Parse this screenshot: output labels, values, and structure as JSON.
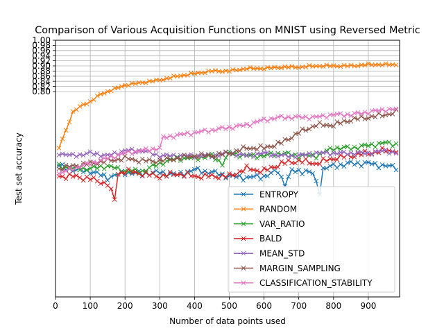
{
  "chart_data": {
    "type": "line",
    "title": "Comparison of Various Acquisition Functions on MNIST using Reversed Metric",
    "xlabel": "Number of data points used",
    "ylabel": "Test set accuracy",
    "xlim": [
      0,
      990
    ],
    "ylim": [
      0.0,
      1.0
    ],
    "x_ticks": [
      0,
      100,
      200,
      300,
      400,
      500,
      600,
      700,
      800,
      900
    ],
    "y_ticks": [
      0.8,
      0.82,
      0.84,
      0.86,
      0.88,
      0.9,
      0.92,
      0.94,
      0.96,
      0.98,
      1.0
    ],
    "y_tick_labels": [
      "0.80",
      "0.82",
      "0.84",
      "0.86",
      "0.88",
      "0.90",
      "0.92",
      "0.94",
      "0.96",
      "0.98",
      "1.00"
    ],
    "grid": true,
    "legend_position": "lower-right",
    "marker": "x",
    "series": [
      {
        "name": "ENTROPY",
        "color": "#1f77b4",
        "anchors": [
          [
            10,
            0.51
          ],
          [
            50,
            0.495
          ],
          [
            100,
            0.49
          ],
          [
            150,
            0.465
          ],
          [
            200,
            0.485
          ],
          [
            250,
            0.48
          ],
          [
            300,
            0.485
          ],
          [
            350,
            0.475
          ],
          [
            400,
            0.495
          ],
          [
            450,
            0.485
          ],
          [
            500,
            0.47
          ],
          [
            550,
            0.465
          ],
          [
            600,
            0.47
          ],
          [
            640,
            0.49
          ],
          [
            660,
            0.44
          ],
          [
            680,
            0.49
          ],
          [
            720,
            0.49
          ],
          [
            740,
            0.48
          ],
          [
            760,
            0.41
          ],
          [
            770,
            0.5
          ],
          [
            800,
            0.51
          ],
          [
            850,
            0.52
          ],
          [
            900,
            0.52
          ],
          [
            950,
            0.51
          ],
          [
            980,
            0.505
          ]
        ],
        "amp": 0.012
      },
      {
        "name": "RANDOM",
        "color": "#ff7f0e",
        "anchors": [
          [
            10,
            0.58
          ],
          [
            30,
            0.65
          ],
          [
            50,
            0.72
          ],
          [
            80,
            0.75
          ],
          [
            100,
            0.76
          ],
          [
            130,
            0.79
          ],
          [
            170,
            0.81
          ],
          [
            200,
            0.825
          ],
          [
            250,
            0.835
          ],
          [
            300,
            0.845
          ],
          [
            350,
            0.86
          ],
          [
            400,
            0.87
          ],
          [
            450,
            0.88
          ],
          [
            500,
            0.88
          ],
          [
            550,
            0.89
          ],
          [
            600,
            0.89
          ],
          [
            650,
            0.895
          ],
          [
            700,
            0.895
          ],
          [
            750,
            0.9
          ],
          [
            800,
            0.9
          ],
          [
            850,
            0.9
          ],
          [
            900,
            0.905
          ],
          [
            950,
            0.905
          ],
          [
            980,
            0.905
          ]
        ],
        "amp": 0.004
      },
      {
        "name": "VAR_RATIO",
        "color": "#2ca02c",
        "anchors": [
          [
            10,
            0.51
          ],
          [
            50,
            0.5
          ],
          [
            100,
            0.5
          ],
          [
            150,
            0.51
          ],
          [
            200,
            0.49
          ],
          [
            250,
            0.49
          ],
          [
            300,
            0.52
          ],
          [
            350,
            0.54
          ],
          [
            400,
            0.54
          ],
          [
            450,
            0.55
          ],
          [
            480,
            0.52
          ],
          [
            500,
            0.56
          ],
          [
            550,
            0.55
          ],
          [
            600,
            0.55
          ],
          [
            650,
            0.56
          ],
          [
            700,
            0.55
          ],
          [
            750,
            0.55
          ],
          [
            800,
            0.58
          ],
          [
            850,
            0.58
          ],
          [
            900,
            0.59
          ],
          [
            950,
            0.6
          ],
          [
            980,
            0.595
          ]
        ],
        "amp": 0.01
      },
      {
        "name": "BALD",
        "color": "#d62728",
        "anchors": [
          [
            10,
            0.47
          ],
          [
            50,
            0.47
          ],
          [
            100,
            0.46
          ],
          [
            150,
            0.44
          ],
          [
            170,
            0.38
          ],
          [
            180,
            0.48
          ],
          [
            200,
            0.49
          ],
          [
            250,
            0.48
          ],
          [
            300,
            0.47
          ],
          [
            350,
            0.48
          ],
          [
            400,
            0.47
          ],
          [
            450,
            0.47
          ],
          [
            500,
            0.47
          ],
          [
            550,
            0.5
          ],
          [
            600,
            0.49
          ],
          [
            650,
            0.52
          ],
          [
            700,
            0.53
          ],
          [
            750,
            0.52
          ],
          [
            800,
            0.54
          ],
          [
            850,
            0.55
          ],
          [
            900,
            0.56
          ],
          [
            950,
            0.57
          ],
          [
            980,
            0.57
          ]
        ],
        "amp": 0.012
      },
      {
        "name": "MEAN_STD",
        "color": "#9467bd",
        "anchors": [
          [
            10,
            0.56
          ],
          [
            50,
            0.55
          ],
          [
            100,
            0.56
          ],
          [
            150,
            0.55
          ],
          [
            200,
            0.57
          ],
          [
            250,
            0.57
          ],
          [
            300,
            0.55
          ],
          [
            350,
            0.55
          ],
          [
            400,
            0.55
          ],
          [
            450,
            0.55
          ],
          [
            500,
            0.56
          ],
          [
            550,
            0.55
          ],
          [
            600,
            0.56
          ],
          [
            650,
            0.55
          ],
          [
            700,
            0.55
          ],
          [
            750,
            0.56
          ],
          [
            800,
            0.56
          ],
          [
            850,
            0.56
          ],
          [
            900,
            0.56
          ],
          [
            950,
            0.57
          ],
          [
            980,
            0.56
          ]
        ],
        "amp": 0.008
      },
      {
        "name": "MARGIN_SAMPLING",
        "color": "#8c564b",
        "anchors": [
          [
            10,
            0.5
          ],
          [
            50,
            0.51
          ],
          [
            100,
            0.52
          ],
          [
            150,
            0.53
          ],
          [
            200,
            0.54
          ],
          [
            250,
            0.53
          ],
          [
            300,
            0.53
          ],
          [
            350,
            0.54
          ],
          [
            400,
            0.55
          ],
          [
            450,
            0.55
          ],
          [
            500,
            0.56
          ],
          [
            550,
            0.58
          ],
          [
            600,
            0.58
          ],
          [
            650,
            0.6
          ],
          [
            700,
            0.64
          ],
          [
            750,
            0.67
          ],
          [
            800,
            0.67
          ],
          [
            850,
            0.69
          ],
          [
            900,
            0.7
          ],
          [
            950,
            0.71
          ],
          [
            980,
            0.72
          ]
        ],
        "amp": 0.01
      },
      {
        "name": "CLASSIFICATION_STABILITY",
        "color": "#e377c2",
        "anchors": [
          [
            10,
            0.48
          ],
          [
            50,
            0.5
          ],
          [
            100,
            0.52
          ],
          [
            150,
            0.54
          ],
          [
            200,
            0.56
          ],
          [
            250,
            0.57
          ],
          [
            300,
            0.58
          ],
          [
            310,
            0.62
          ],
          [
            350,
            0.63
          ],
          [
            400,
            0.64
          ],
          [
            450,
            0.65
          ],
          [
            500,
            0.66
          ],
          [
            550,
            0.67
          ],
          [
            600,
            0.69
          ],
          [
            650,
            0.7
          ],
          [
            700,
            0.7
          ],
          [
            750,
            0.7
          ],
          [
            800,
            0.71
          ],
          [
            850,
            0.71
          ],
          [
            900,
            0.72
          ],
          [
            950,
            0.73
          ],
          [
            980,
            0.73
          ]
        ],
        "amp": 0.008
      }
    ]
  }
}
